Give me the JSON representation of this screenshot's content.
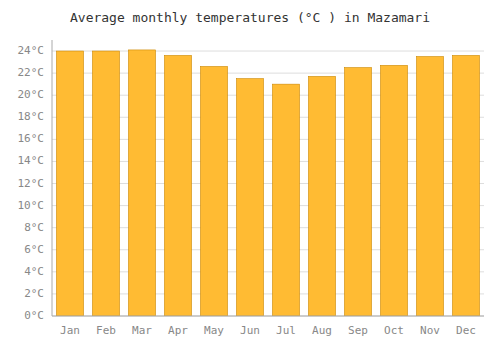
{
  "chart_data": {
    "type": "bar",
    "title": "Average monthly temperatures (°C ) in Mazamari",
    "categories": [
      "Jan",
      "Feb",
      "Mar",
      "Apr",
      "May",
      "Jun",
      "Jul",
      "Aug",
      "Sep",
      "Oct",
      "Nov",
      "Dec"
    ],
    "values": [
      24.0,
      24.0,
      24.1,
      23.6,
      22.6,
      21.5,
      21.0,
      21.7,
      22.5,
      22.7,
      23.5,
      23.6
    ],
    "color": "#FFBB33",
    "ylim": [
      0,
      25
    ],
    "yticks": [
      {
        "value": 0,
        "label": "0°C"
      },
      {
        "value": 2,
        "label": "2°C"
      },
      {
        "value": 4,
        "label": "4°C"
      },
      {
        "value": 6,
        "label": "6°C"
      },
      {
        "value": 8,
        "label": "8°C"
      },
      {
        "value": 10,
        "label": "10°C"
      },
      {
        "value": 12,
        "label": "12°C"
      },
      {
        "value": 14,
        "label": "14°C"
      },
      {
        "value": 16,
        "label": "16°C"
      },
      {
        "value": 18,
        "label": "18°C"
      },
      {
        "value": 20,
        "label": "20°C"
      },
      {
        "value": 22,
        "label": "22°C"
      },
      {
        "value": 24,
        "label": "24°C"
      }
    ],
    "grid": true
  }
}
